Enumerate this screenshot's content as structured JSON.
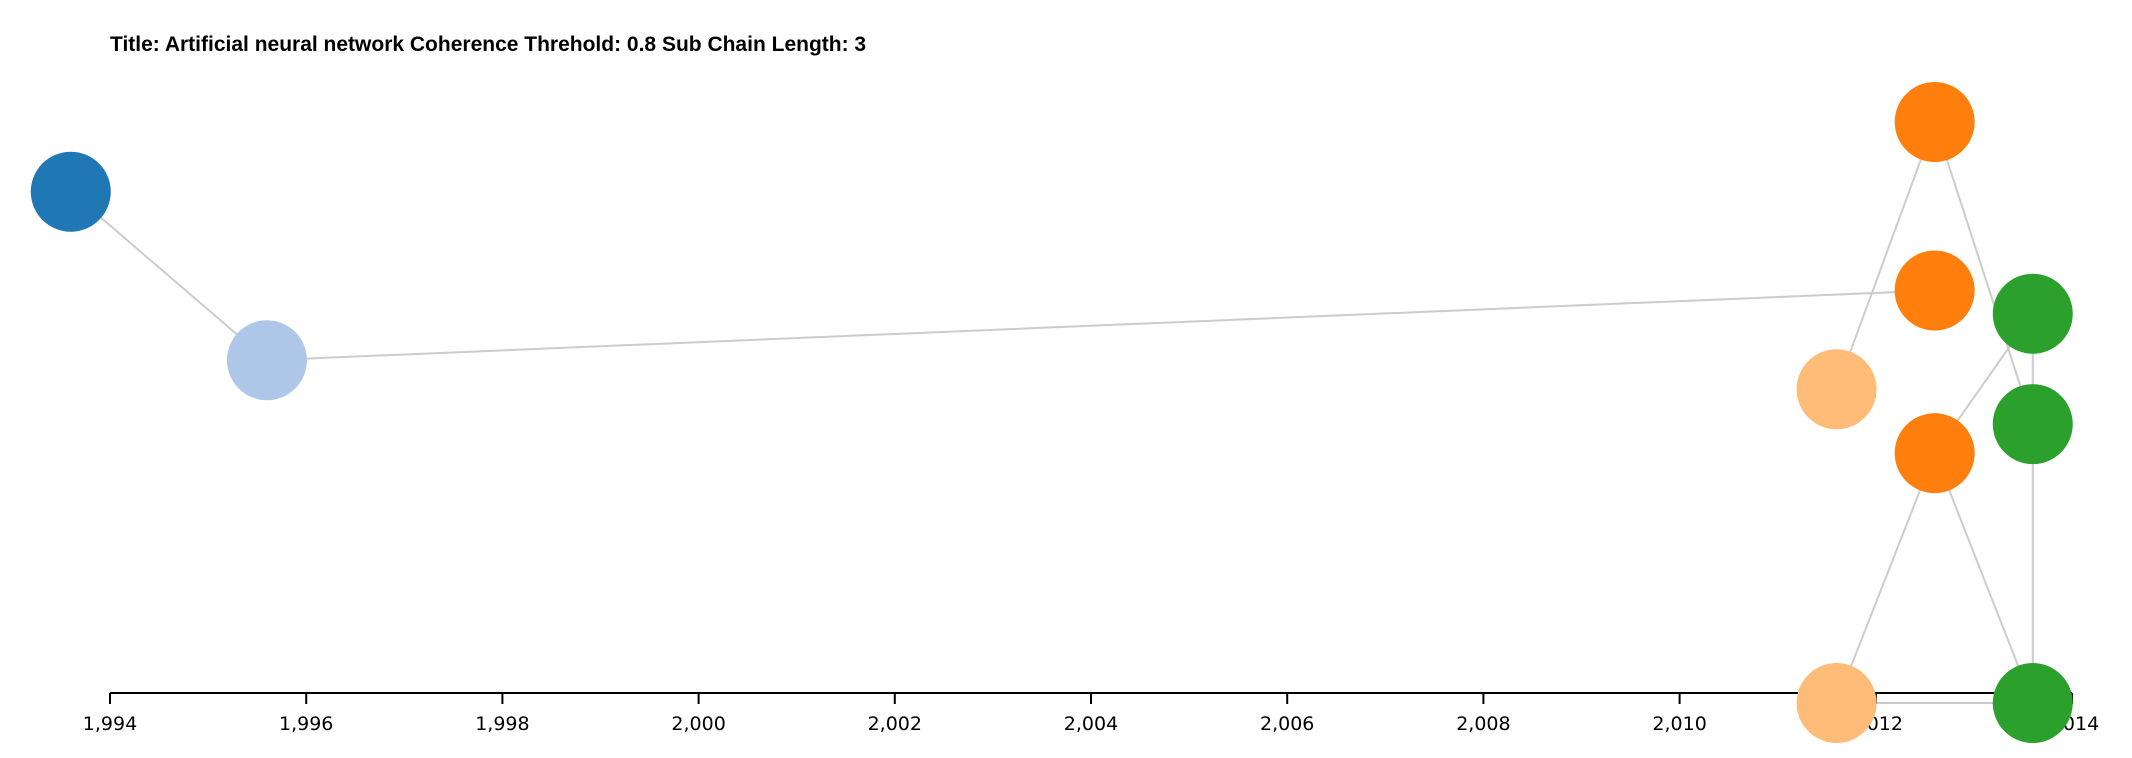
{
  "chart_data": {
    "type": "scatter",
    "title": "Title: Artificial neural network Coherence Threhold: 0.8 Sub Chain Length: 3",
    "xlabel": "",
    "ylabel": "",
    "xlim": [
      1994,
      2014
    ],
    "x_ticks": [
      1994,
      1996,
      1998,
      2000,
      2002,
      2004,
      2006,
      2008,
      2010,
      2012,
      2014
    ],
    "x_tick_labels": [
      "1,994",
      "1,996",
      "1,998",
      "2,000",
      "2,002",
      "2,004",
      "2,006",
      "2,008",
      "2,010",
      "2,012",
      "2,014"
    ],
    "grid": false,
    "nodes": [
      {
        "id": "n1",
        "x": 1993.6,
        "level": 8.8,
        "color": "#1f77b4"
      },
      {
        "id": "n2",
        "x": 1995.6,
        "level": 5.9,
        "color": "#aec7e8"
      },
      {
        "id": "n3",
        "x": 2012.6,
        "level": 10.0,
        "color": "#ff7f0e"
      },
      {
        "id": "n4",
        "x": 2012.6,
        "level": 7.1,
        "color": "#ff7f0e"
      },
      {
        "id": "n5",
        "x": 2013.6,
        "level": 6.7,
        "color": "#2ca02c"
      },
      {
        "id": "n6",
        "x": 2011.6,
        "level": 5.4,
        "color": "#ffbb78"
      },
      {
        "id": "n7",
        "x": 2013.6,
        "level": 4.8,
        "color": "#2ca02c"
      },
      {
        "id": "n8",
        "x": 2012.6,
        "level": 4.3,
        "color": "#ff7f0e"
      },
      {
        "id": "n9",
        "x": 2011.6,
        "level": 0.0,
        "color": "#ffbb78"
      },
      {
        "id": "n10",
        "x": 2013.6,
        "level": 0.0,
        "color": "#2ca02c"
      }
    ],
    "links": [
      [
        "n1",
        "n2"
      ],
      [
        "n2",
        "n4"
      ],
      [
        "n3",
        "n6"
      ],
      [
        "n3",
        "n7"
      ],
      [
        "n5",
        "n7"
      ],
      [
        "n5",
        "n8"
      ],
      [
        "n7",
        "n10"
      ],
      [
        "n8",
        "n9"
      ],
      [
        "n8",
        "n10"
      ],
      [
        "n9",
        "n10"
      ]
    ]
  }
}
